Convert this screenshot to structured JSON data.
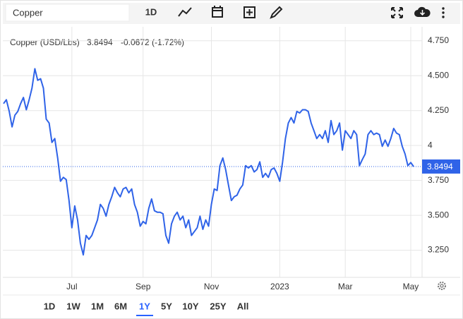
{
  "toolbar": {
    "search": "Copper",
    "interval": "1D"
  },
  "chart_data": {
    "type": "line",
    "title": "Copper (USD/Lbs)",
    "last_price": 3.8494,
    "change": "-0.0672 (-1.72%)",
    "color": "#2f63e8",
    "change_color": "#e0504d",
    "series": [
      {
        "name": "Copper",
        "color": "#2f63e8",
        "values": [
          4.3,
          4.328,
          4.244,
          4.133,
          4.217,
          4.244,
          4.3,
          4.344,
          4.256,
          4.328,
          4.411,
          4.55,
          4.467,
          4.478,
          4.411,
          4.189,
          4.161,
          4.022,
          4.05,
          3.911,
          3.744,
          3.772,
          3.756,
          3.606,
          3.411,
          3.567,
          3.467,
          3.3,
          3.217,
          3.356,
          3.328,
          3.356,
          3.411,
          3.467,
          3.578,
          3.55,
          3.494,
          3.578,
          3.633,
          3.7,
          3.661,
          3.633,
          3.689,
          3.7,
          3.661,
          3.689,
          3.578,
          3.522,
          3.422,
          3.456,
          3.439,
          3.55,
          3.617,
          3.533,
          3.522,
          3.522,
          3.511,
          3.356,
          3.3,
          3.439,
          3.494,
          3.522,
          3.467,
          3.494,
          3.411,
          3.467,
          3.356,
          3.383,
          3.411,
          3.494,
          3.4,
          3.467,
          3.422,
          3.578,
          3.689,
          3.678,
          3.856,
          3.911,
          3.828,
          3.717,
          3.606,
          3.633,
          3.644,
          3.689,
          3.717,
          3.856,
          3.839,
          3.856,
          3.811,
          3.828,
          3.883,
          3.772,
          3.8,
          3.772,
          3.828,
          3.839,
          3.8,
          3.744,
          3.883,
          4.05,
          4.161,
          4.2,
          4.161,
          4.244,
          4.233,
          4.256,
          4.256,
          4.244,
          4.161,
          4.106,
          4.05,
          4.078,
          4.05,
          4.106,
          4.022,
          4.178,
          4.078,
          4.106,
          4.161,
          3.967,
          4.106,
          4.078,
          4.05,
          4.106,
          4.078,
          3.856,
          3.9,
          3.939,
          4.078,
          4.106,
          4.078,
          4.089,
          4.078,
          3.994,
          4.039,
          3.994,
          4.05,
          4.122,
          4.089,
          4.078,
          3.994,
          3.939,
          3.856,
          3.878,
          3.849
        ]
      }
    ],
    "ylim": [
      3.0556,
      4.85
    ],
    "yticks": [
      {
        "value": 4.75,
        "label": "4.750"
      },
      {
        "value": 4.5,
        "label": "4.500"
      },
      {
        "value": 4.25,
        "label": "4.250"
      },
      4,
      {
        "value": 3.75,
        "label": "3.750"
      },
      {
        "value": 3.5,
        "label": "3.500"
      },
      {
        "value": 3.25,
        "label": "3.250"
      }
    ],
    "xticks": [
      {
        "value": 24,
        "label": "Jul"
      },
      {
        "value": 49,
        "label": "Sep"
      },
      {
        "value": 73,
        "label": "Nov"
      },
      {
        "value": 97,
        "label": "2023"
      },
      {
        "value": 120,
        "label": "Mar"
      },
      {
        "value": 143,
        "label": "May"
      }
    ],
    "grid": true
  },
  "ranges": [
    "1D",
    "1W",
    "1M",
    "6M",
    "1Y",
    "5Y",
    "10Y",
    "25Y",
    "All"
  ],
  "active_range": "1Y"
}
